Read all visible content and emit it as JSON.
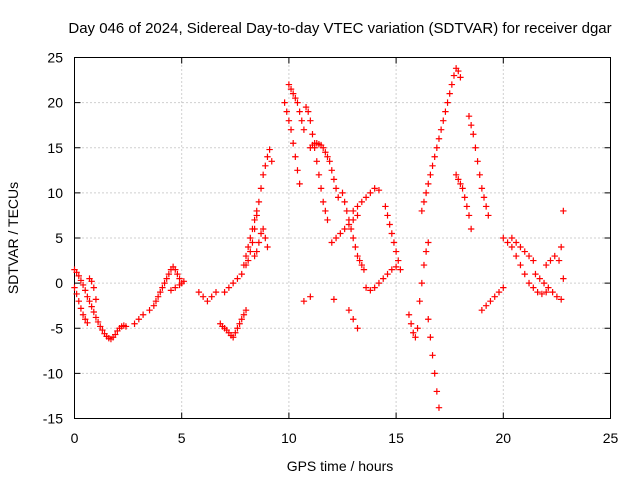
{
  "chart_data": {
    "type": "scatter",
    "title": "Day 046 of 2024, Sidereal Day-to-day VTEC variation (SDTVAR) for receiver dgar",
    "xlabel": "GPS time / hours",
    "ylabel": "SDTVAR / TECUs",
    "xlim": [
      0,
      25
    ],
    "ylim": [
      -15,
      25
    ],
    "xticks": [
      "0",
      "5",
      "10",
      "15",
      "20",
      "25"
    ],
    "yticks": [
      "-15",
      "-10",
      "-5",
      "0",
      "5",
      "10",
      "15",
      "20",
      "25"
    ],
    "grid": true,
    "marker": "plus",
    "color": "#ff0000",
    "series": [
      {
        "name": "SDTVAR",
        "x": [
          0.0,
          0.1,
          0.2,
          0.3,
          0.4,
          0.5,
          0.6,
          0.7,
          0.8,
          0.9,
          1.0,
          1.1,
          1.2,
          1.3,
          1.4,
          1.5,
          1.6,
          1.7,
          1.8,
          1.9,
          2.0,
          2.1,
          2.2,
          2.3,
          2.4,
          0.0,
          0.1,
          0.2,
          0.3,
          0.4,
          0.5,
          0.6,
          0.7,
          0.8,
          0.9,
          1.0,
          2.8,
          3.0,
          3.2,
          3.5,
          3.7,
          3.8,
          3.9,
          4.0,
          4.1,
          4.2,
          4.3,
          4.4,
          4.5,
          4.6,
          4.7,
          4.8,
          4.9,
          5.0,
          4.5,
          4.7,
          4.9,
          5.1,
          5.8,
          6.0,
          6.2,
          6.4,
          6.6,
          6.8,
          6.9,
          7.0,
          7.1,
          7.2,
          7.3,
          7.4,
          7.5,
          7.6,
          7.7,
          7.8,
          7.9,
          8.0,
          7.0,
          7.2,
          7.4,
          7.6,
          7.8,
          7.9,
          8.0,
          8.1,
          8.2,
          8.3,
          8.4,
          8.5,
          8.0,
          8.1,
          8.2,
          8.3,
          8.4,
          8.5,
          8.6,
          8.7,
          8.8,
          8.9,
          9.0,
          9.1,
          9.2,
          8.4,
          8.5,
          8.6,
          8.7,
          8.8,
          8.9,
          9.0,
          9.8,
          9.9,
          10.0,
          10.1,
          10.2,
          10.3,
          10.4,
          10.5,
          10.0,
          10.1,
          10.2,
          10.3,
          10.4,
          10.5,
          10.6,
          10.7,
          10.8,
          10.9,
          11.0,
          11.1,
          11.2,
          11.3,
          11.4,
          11.5,
          11.6,
          11.7,
          11.8,
          11.0,
          11.1,
          11.2,
          11.3,
          11.4,
          11.5,
          11.6,
          11.7,
          11.8,
          11.9,
          12.0,
          12.1,
          12.2,
          12.3,
          12.0,
          12.2,
          12.4,
          12.6,
          12.8,
          13.0,
          13.2,
          12.5,
          12.6,
          12.7,
          12.8,
          12.9,
          13.0,
          13.1,
          13.2,
          13.3,
          13.4,
          13.5,
          13.0,
          13.2,
          13.4,
          13.6,
          13.8,
          14.0,
          14.2,
          13.6,
          13.8,
          14.0,
          14.2,
          14.4,
          14.6,
          14.8,
          15.0,
          14.5,
          14.6,
          14.7,
          14.8,
          14.9,
          15.0,
          15.1,
          15.2,
          10.7,
          11.0,
          12.1,
          12.8,
          13.0,
          13.2,
          15.6,
          15.7,
          15.8,
          15.9,
          16.0,
          16.1,
          16.2,
          16.3,
          16.4,
          16.5,
          16.5,
          16.6,
          16.7,
          16.8,
          16.9,
          17.0,
          16.2,
          16.3,
          16.4,
          16.5,
          16.6,
          16.7,
          16.8,
          16.9,
          17.0,
          17.1,
          17.2,
          17.3,
          17.4,
          17.5,
          17.6,
          17.7,
          17.8,
          17.9,
          18.0,
          17.8,
          17.9,
          18.0,
          18.1,
          18.2,
          18.3,
          18.4,
          18.5,
          18.4,
          18.5,
          18.6,
          18.7,
          18.8,
          18.9,
          19.0,
          19.1,
          19.2,
          19.3,
          19.0,
          19.2,
          19.4,
          19.6,
          19.8,
          20.0,
          20.0,
          20.2,
          20.4,
          20.6,
          20.8,
          21.0,
          21.2,
          21.4,
          21.6,
          21.8,
          22.0,
          20.4,
          20.6,
          20.8,
          21.0,
          21.2,
          21.4,
          21.5,
          21.7,
          21.9,
          22.1,
          22.3,
          22.5,
          22.7,
          22.0,
          22.2,
          22.4,
          22.6,
          22.8,
          22.7,
          22.8
        ],
        "y": [
          1.5,
          1.2,
          0.8,
          0.3,
          -0.2,
          -0.8,
          -1.5,
          -2.0,
          -2.6,
          -3.2,
          -3.8,
          -4.3,
          -4.8,
          -5.2,
          -5.6,
          -5.9,
          -6.1,
          -6.2,
          -6.0,
          -5.7,
          -5.3,
          -5.0,
          -4.8,
          -4.7,
          -4.8,
          -0.5,
          -1.2,
          -2.0,
          -2.8,
          -3.5,
          -4.0,
          -4.4,
          0.5,
          0.2,
          -0.5,
          -1.8,
          -4.5,
          -4.0,
          -3.5,
          -3.0,
          -2.5,
          -2.0,
          -1.5,
          -1.0,
          -0.5,
          0.0,
          0.5,
          1.0,
          1.5,
          1.8,
          1.5,
          1.0,
          0.5,
          0.0,
          -0.8,
          -0.5,
          -0.2,
          0.2,
          -1.0,
          -1.5,
          -2.0,
          -1.5,
          -1.0,
          -4.5,
          -4.8,
          -5.0,
          -5.2,
          -5.5,
          -5.8,
          -6.0,
          -5.5,
          -5.0,
          -4.5,
          -4.0,
          -3.5,
          -3.0,
          -1.0,
          -0.5,
          0.0,
          0.5,
          1.0,
          2.0,
          3.0,
          4.0,
          5.0,
          6.0,
          7.0,
          8.0,
          2.0,
          2.5,
          3.5,
          4.5,
          6.0,
          7.5,
          9.0,
          10.5,
          12.0,
          13.0,
          14.0,
          14.8,
          13.5,
          3.0,
          3.5,
          4.5,
          5.5,
          6.0,
          5.0,
          4.0,
          20.0,
          19.0,
          18.0,
          17.0,
          15.5,
          14.0,
          12.5,
          11.0,
          22.0,
          21.5,
          21.0,
          20.5,
          20.0,
          19.0,
          18.0,
          17.0,
          19.5,
          19.0,
          18.0,
          16.5,
          15.0,
          13.5,
          12.0,
          10.5,
          9.0,
          8.0,
          7.0,
          15.0,
          15.3,
          15.5,
          15.5,
          15.4,
          15.3,
          15.0,
          14.5,
          14.0,
          13.5,
          12.5,
          11.5,
          10.5,
          9.5,
          4.5,
          5.0,
          5.5,
          6.0,
          6.5,
          7.0,
          7.5,
          10.0,
          9.0,
          8.0,
          7.0,
          6.0,
          5.0,
          4.0,
          3.0,
          2.5,
          2.0,
          1.5,
          8.0,
          8.5,
          9.0,
          9.5,
          10.0,
          10.5,
          10.3,
          -0.5,
          -0.8,
          -0.5,
          0.0,
          0.5,
          1.0,
          1.5,
          1.8,
          8.5,
          7.5,
          6.5,
          5.5,
          4.5,
          3.5,
          2.5,
          1.5,
          -2.0,
          -1.5,
          -1.8,
          -3.0,
          -4.0,
          -5.0,
          -3.5,
          -4.5,
          -5.5,
          -6.0,
          -5.0,
          -2.0,
          0.0,
          2.0,
          3.5,
          4.5,
          -4.0,
          -6.0,
          -8.0,
          -10.0,
          -12.0,
          -13.8,
          8.0,
          9.0,
          10.0,
          11.0,
          12.0,
          13.0,
          14.0,
          15.0,
          16.0,
          17.0,
          18.0,
          19.0,
          20.0,
          21.0,
          22.0,
          23.0,
          23.8,
          23.5,
          22.8,
          12.0,
          11.5,
          11.0,
          10.5,
          9.5,
          8.5,
          7.5,
          6.0,
          18.5,
          17.5,
          16.5,
          15.0,
          13.5,
          12.0,
          10.5,
          9.5,
          8.5,
          7.5,
          -3.0,
          -2.5,
          -2.0,
          -1.5,
          -1.0,
          -0.5,
          5.0,
          4.5,
          4.0,
          3.0,
          2.0,
          1.0,
          0.0,
          -0.5,
          -1.0,
          -1.2,
          -1.0,
          5.0,
          4.5,
          4.0,
          3.5,
          3.0,
          2.5,
          1.0,
          0.5,
          0.0,
          -0.5,
          -1.0,
          -1.5,
          -1.8,
          2.0,
          2.5,
          3.0,
          2.5,
          8.0,
          4.0,
          0.5
        ]
      }
    ]
  }
}
